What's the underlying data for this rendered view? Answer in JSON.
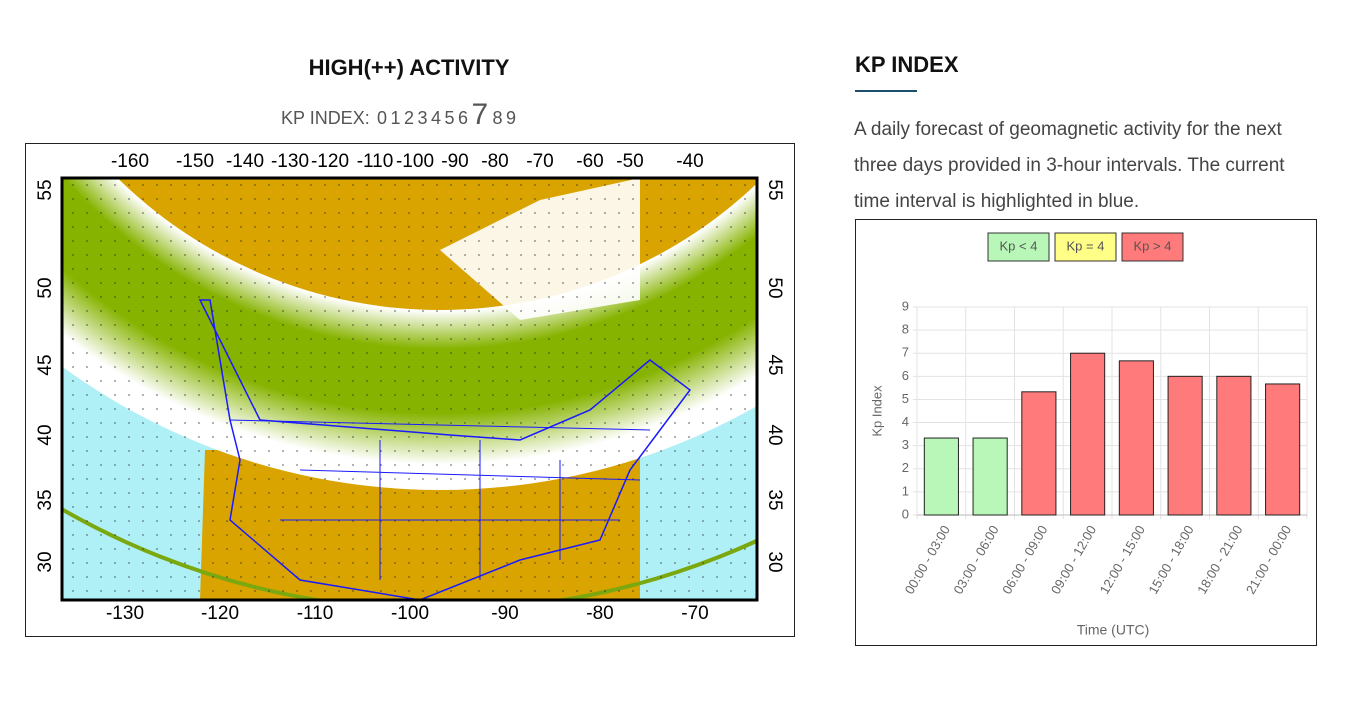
{
  "left": {
    "title": "HIGH(++) ACTIVITY",
    "kp_scale": {
      "label": "KP INDEX:",
      "levels": [
        "0",
        "1",
        "2",
        "3",
        "4",
        "5",
        "6",
        "7",
        "8",
        "9"
      ],
      "current": 7
    },
    "map": {
      "top_labels": [
        "-160",
        "-150",
        "-140",
        "-130",
        "-120",
        "-110",
        "-100",
        "-90",
        "-80",
        "-70",
        "-60",
        "-50",
        "-40"
      ],
      "bottom_labels": [
        "-130",
        "-120",
        "-110",
        "-100",
        "-90",
        "-80",
        "-70"
      ],
      "left_labels": [
        "55",
        "50",
        "45",
        "40",
        "35",
        "30"
      ],
      "right_labels": [
        "55",
        "50",
        "45",
        "40",
        "35",
        "30"
      ]
    }
  },
  "right": {
    "heading": "KP INDEX",
    "description": "A daily forecast of geomagnetic activity for the next three days provided in 3-hour intervals. The current time interval is highlighted in blue."
  },
  "chart_data": {
    "type": "bar",
    "legend": [
      {
        "name": "Kp < 4",
        "color": "#b9f7b9"
      },
      {
        "name": "Kp = 4",
        "color": "#ffff88"
      },
      {
        "name": "Kp > 4",
        "color": "#ff7a7a"
      }
    ],
    "categories": [
      "00:00 - 03:00",
      "03:00 - 06:00",
      "06:00 - 09:00",
      "09:00 - 12:00",
      "12:00 - 15:00",
      "15:00 - 18:00",
      "18:00 - 21:00",
      "21:00 - 00:00"
    ],
    "values": [
      3.33,
      3.33,
      5.33,
      7,
      6.67,
      6,
      6,
      5.67
    ],
    "colors": [
      "#b9f7b9",
      "#b9f7b9",
      "#ff7a7a",
      "#ff7a7a",
      "#ff7a7a",
      "#ff7a7a",
      "#ff7a7a",
      "#ff7a7a"
    ],
    "ylabel": "Kp Index",
    "xlabel": "Time (UTC)",
    "ylim": [
      0,
      9
    ],
    "yticks": [
      0,
      1,
      2,
      3,
      4,
      5,
      6,
      7,
      8,
      9
    ],
    "grid": true
  }
}
